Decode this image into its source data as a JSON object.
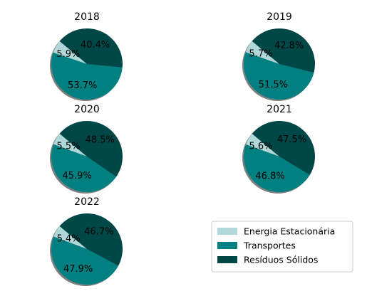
{
  "chart_data": {
    "type": "pie",
    "categories": [
      "Energia Estacionária",
      "Transportes",
      "Resíduos Sólidos"
    ],
    "colors": [
      "#b0d8d8",
      "#008080",
      "#004848"
    ],
    "shadow": true,
    "start_angle_deg": 140,
    "legend_position": "lower-right",
    "charts": [
      {
        "title": "2018",
        "values": [
          5.9,
          53.7,
          40.4
        ],
        "labels": [
          "5.9%",
          "53.7%",
          "40.4%"
        ]
      },
      {
        "title": "2019",
        "values": [
          5.7,
          51.5,
          42.8
        ],
        "labels": [
          "5.7%",
          "51.5%",
          "42.8%"
        ]
      },
      {
        "title": "2020",
        "values": [
          5.5,
          45.9,
          48.5
        ],
        "labels": [
          "5.5%",
          "45.9%",
          "48.5%"
        ]
      },
      {
        "title": "2021",
        "values": [
          5.6,
          46.8,
          47.5
        ],
        "labels": [
          "5.6%",
          "46.8%",
          "47.5%"
        ]
      },
      {
        "title": "2022",
        "values": [
          5.4,
          47.9,
          46.7
        ],
        "labels": [
          "5.4%",
          "47.9%",
          "46.7%"
        ]
      }
    ]
  }
}
